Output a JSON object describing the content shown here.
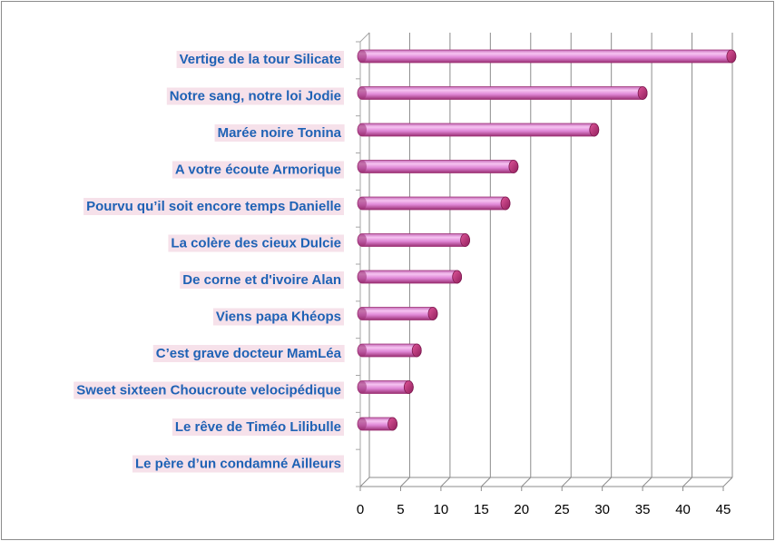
{
  "chart_data": {
    "type": "bar",
    "orientation": "horizontal",
    "style": "3d-cylinder",
    "categories": [
      "Vertige de la tour Silicate",
      "Notre sang, notre loi Jodie",
      "Marée noire Tonina",
      "A votre écoute  Armorique",
      "Pourvu qu’il soit encore temps Danielle",
      "La colère des cieux Dulcie",
      "De corne et d'ivoire Alan",
      "Viens papa Khéops",
      "C’est grave docteur MamLéa",
      "Sweet sixteen  Choucroute velocipédique",
      "Le rêve de Timéo Lilibulle",
      "Le père d’un condamné Ailleurs"
    ],
    "values": [
      46,
      35,
      29,
      19,
      18,
      13,
      12,
      9,
      7,
      6,
      4,
      0
    ],
    "xlim": [
      0,
      45
    ],
    "xticks": [
      "0",
      "5",
      "10",
      "15",
      "20",
      "25",
      "30",
      "35",
      "40",
      "45"
    ],
    "grid": true,
    "legend": "none",
    "title": "",
    "xlabel": "",
    "ylabel": "",
    "colors": {
      "bar_light": "#f3b6ee",
      "bar_mid": "#d873cf",
      "bar_dark": "#9a2f72",
      "bar_cap": "#c4377e",
      "label_text": "#1f62b5",
      "label_highlight": "#f6e1ea",
      "grid": "#8c8c8c",
      "wall": "#a6a6a6"
    }
  }
}
